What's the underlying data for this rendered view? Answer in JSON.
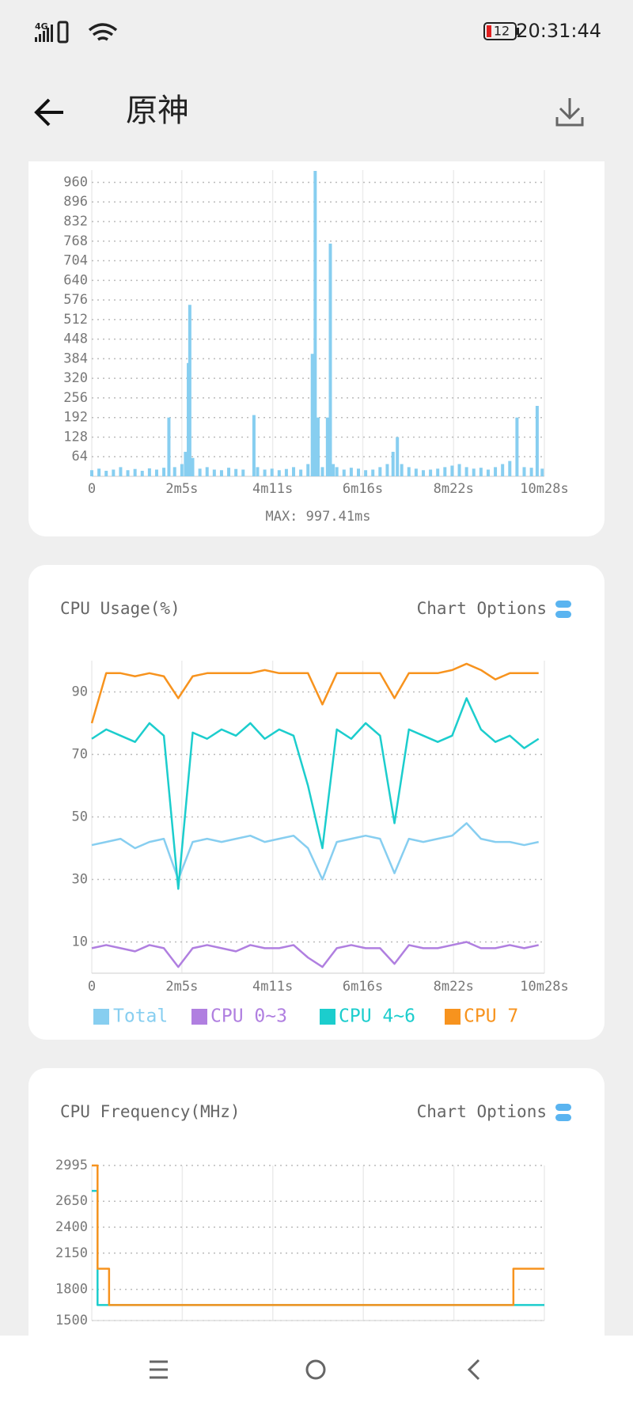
{
  "status_bar": {
    "network": "4G",
    "battery": "12",
    "time": "20:31:44"
  },
  "header": {
    "title": "原神"
  },
  "frame_chart": {
    "type": "bar",
    "color": "#87cef0",
    "xlim": [
      0,
      628
    ],
    "ylim": [
      0,
      1000
    ],
    "xticks": [
      0,
      {
        "value": 125,
        "label": "2m5s"
      },
      {
        "value": 251,
        "label": "4m11s"
      },
      {
        "value": 376,
        "label": "6m16s"
      },
      {
        "value": 502,
        "label": "8m22s"
      },
      {
        "value": 628,
        "label": "10m28s"
      }
    ],
    "yticks": [
      64,
      128,
      192,
      256,
      320,
      384,
      448,
      512,
      576,
      640,
      704,
      768,
      832,
      896,
      960
    ],
    "x": [
      0,
      10,
      20,
      30,
      40,
      50,
      60,
      70,
      80,
      90,
      100,
      107,
      115,
      125,
      130,
      134,
      136,
      140,
      150,
      160,
      170,
      180,
      190,
      200,
      210,
      225,
      230,
      240,
      250,
      260,
      270,
      280,
      290,
      300,
      306,
      310,
      314,
      320,
      327,
      331,
      335,
      340,
      350,
      360,
      370,
      380,
      390,
      400,
      410,
      418,
      424,
      430,
      440,
      450,
      460,
      470,
      480,
      490,
      500,
      510,
      520,
      530,
      540,
      550,
      560,
      570,
      580,
      590,
      600,
      610,
      618,
      625
    ],
    "values": [
      20,
      25,
      18,
      22,
      30,
      20,
      24,
      18,
      26,
      22,
      28,
      192,
      30,
      40,
      80,
      370,
      560,
      60,
      25,
      30,
      22,
      20,
      28,
      24,
      22,
      200,
      30,
      22,
      25,
      20,
      24,
      30,
      22,
      40,
      400,
      997.41,
      192,
      30,
      192,
      760,
      40,
      30,
      22,
      28,
      25,
      20,
      22,
      30,
      40,
      80,
      128,
      40,
      30,
      25,
      20,
      22,
      25,
      30,
      35,
      40,
      30,
      25,
      28,
      22,
      30,
      40,
      50,
      192,
      30,
      28,
      230,
      25
    ],
    "footer": "MAX: 997.41ms"
  },
  "cpu_usage": {
    "type": "line",
    "title": "CPU Usage(%)",
    "options": "Chart Options",
    "xlim": [
      0,
      628
    ],
    "ylim": [
      0,
      100
    ],
    "xticks": [
      0,
      {
        "value": 125,
        "label": "2m5s"
      },
      {
        "value": 251,
        "label": "4m11s"
      },
      {
        "value": 376,
        "label": "6m16s"
      },
      {
        "value": 502,
        "label": "8m22s"
      },
      {
        "value": 628,
        "label": "10m28s"
      }
    ],
    "yticks": [
      10,
      30,
      50,
      70,
      90
    ],
    "x": [
      0,
      20,
      40,
      60,
      80,
      100,
      120,
      140,
      160,
      180,
      200,
      220,
      240,
      260,
      280,
      300,
      320,
      340,
      360,
      380,
      400,
      420,
      440,
      460,
      480,
      500,
      520,
      540,
      560,
      580,
      600,
      620
    ],
    "series": [
      {
        "name": "Total",
        "color": "#87cef0",
        "values": [
          41,
          42,
          43,
          40,
          42,
          43,
          30,
          42,
          43,
          42,
          43,
          44,
          42,
          43,
          44,
          40,
          30,
          42,
          43,
          44,
          43,
          32,
          43,
          42,
          43,
          44,
          48,
          43,
          42,
          42,
          41,
          42
        ]
      },
      {
        "name": "CPU 0~3",
        "color": "#b07fe0",
        "values": [
          8,
          9,
          8,
          7,
          9,
          8,
          2,
          8,
          9,
          8,
          7,
          9,
          8,
          8,
          9,
          5,
          2,
          8,
          9,
          8,
          8,
          3,
          9,
          8,
          8,
          9,
          10,
          8,
          8,
          9,
          8,
          9
        ]
      },
      {
        "name": "CPU 4~6",
        "color": "#1ccdcd",
        "values": [
          75,
          78,
          76,
          74,
          80,
          76,
          27,
          77,
          75,
          78,
          76,
          80,
          75,
          78,
          76,
          60,
          40,
          78,
          75,
          80,
          76,
          48,
          78,
          76,
          74,
          76,
          88,
          78,
          74,
          76,
          72,
          75
        ]
      },
      {
        "name": "CPU 7",
        "color": "#f7931e",
        "values": [
          80,
          96,
          96,
          95,
          96,
          95,
          88,
          95,
          96,
          96,
          96,
          96,
          97,
          96,
          96,
          96,
          86,
          96,
          96,
          96,
          96,
          88,
          96,
          96,
          96,
          97,
          99,
          97,
          94,
          96,
          96,
          96
        ]
      }
    ]
  },
  "cpu_frequency": {
    "type": "line",
    "step": true,
    "title": "CPU Frequency(MHz)",
    "options": "Chart Options",
    "xlim": [
      0,
      628
    ],
    "ylim": [
      1500,
      2995
    ],
    "yticks": [
      1500,
      1800,
      2150,
      2400,
      2650,
      2995
    ],
    "series": [
      {
        "color": "#1ccdcd",
        "x": [
          0,
          8,
          628
        ],
        "values": [
          2750,
          1650,
          1650
        ]
      },
      {
        "color": "#f7931e",
        "x": [
          0,
          8,
          24,
          585,
          628
        ],
        "values": [
          2995,
          2000,
          1650,
          2000,
          2000
        ]
      }
    ]
  }
}
